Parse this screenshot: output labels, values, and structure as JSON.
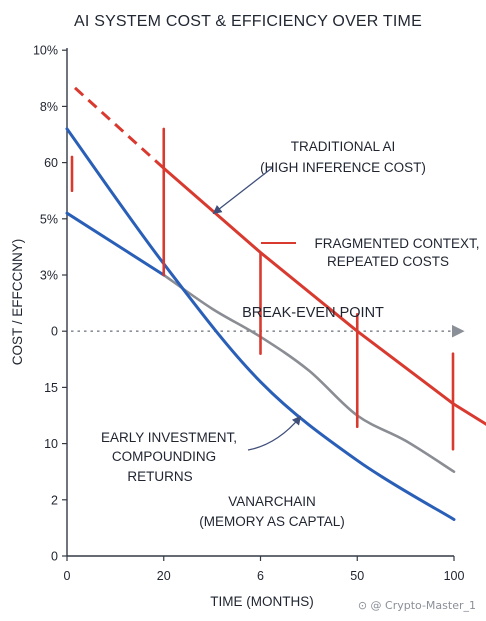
{
  "chart_data": {
    "type": "line",
    "title": "AI SYSTEM COST & EFFICIENCY OVER TIME",
    "xlabel": "TIME (MONTHS)",
    "ylabel": "COST / EFFCCNNY)",
    "x_ticks": [
      "0",
      "20",
      "6",
      "50",
      "100"
    ],
    "y_ticks": [
      "0",
      "2",
      "10",
      "15",
      "0",
      "3%",
      "5%",
      "60",
      "8%",
      "10%"
    ],
    "ylim": [
      0,
      9
    ],
    "grid": false,
    "series": [
      {
        "name": "TRADITIONAL AI (HIGH INFERENCE COST)",
        "color": "#d93a30",
        "x": [
          0,
          1,
          2,
          3,
          4,
          4.75
        ],
        "y": [
          8.4,
          6.9,
          5.4,
          4.0,
          2.7,
          1.9
        ],
        "dashed_until_x": 1,
        "spikes": [
          {
            "x": 0,
            "y_top": 7.1,
            "y_bottom": 6.5
          },
          {
            "x": 1,
            "y_top": 7.6,
            "y_bottom": 5.0
          },
          {
            "x": 2,
            "y_top": 5.4,
            "y_bottom": 3.6
          },
          {
            "x": 3,
            "y_top": 4.3,
            "y_bottom": 2.3
          },
          {
            "x": 4,
            "y_top": 3.6,
            "y_bottom": 1.9
          }
        ]
      },
      {
        "name": "VANARCHAIN (MEMORY AS CAPTAL)",
        "color": "#2a5fb8",
        "x": [
          0,
          1,
          2,
          3,
          4
        ],
        "y": [
          7.6,
          5.2,
          3.1,
          1.7,
          0.65
        ],
        "branch": {
          "x": [
            0,
            1
          ],
          "y": [
            6.1,
            5.0
          ]
        }
      },
      {
        "name": "EARLY INVESTMENT, COMPOUNDING RETURNS",
        "color": "#8a8d93",
        "x": [
          1,
          1.5,
          2,
          2.5,
          3,
          3.5,
          4
        ],
        "y": [
          5.0,
          4.4,
          3.9,
          3.3,
          2.5,
          2.05,
          1.5
        ]
      }
    ],
    "annotations": {
      "traditional": [
        "TRADITIONAL AI",
        "(HIGH INFERENCE COST)"
      ],
      "fragmented": [
        "FRAGMENTED CONTEXT,",
        "REPEATED COSTS"
      ],
      "break_even": "BREAK-EVEN POINT",
      "break_even_y": 4,
      "early": [
        "EARLY INVESTMENT,",
        "COMPOUNDING",
        "RETURNS"
      ],
      "vanar": [
        "VANARCHAIN",
        "(MEMORY AS CAPTAL)"
      ]
    },
    "colors": {
      "red": "#d93a30",
      "blue": "#2a5fb8",
      "gray": "#8a8d93",
      "axis": "#333a45",
      "dotted": "#8a8f98"
    }
  },
  "watermark": "⊙ @ Crypto-Master_1"
}
